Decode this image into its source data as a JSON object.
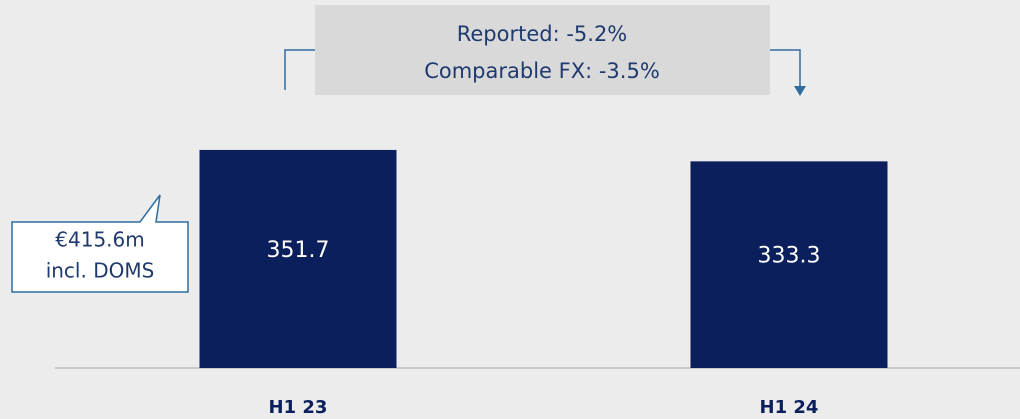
{
  "chart_data": {
    "type": "bar",
    "categories": [
      "H1 23",
      "H1 24"
    ],
    "values": [
      351.7,
      333.3
    ],
    "color": "#0b1f5c",
    "annotation": [
      "Reported: -5.2%",
      "Comparable FX: -3.5%"
    ],
    "callout": [
      "€415.6m",
      "incl. DOMS"
    ]
  }
}
